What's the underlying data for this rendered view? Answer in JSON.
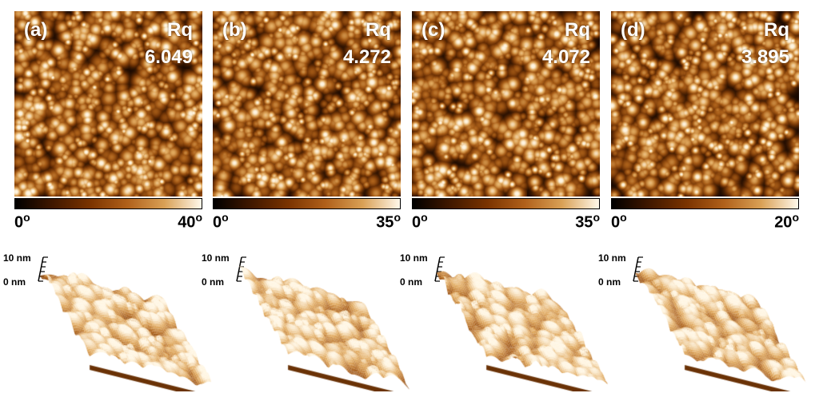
{
  "panels": [
    {
      "label": "(a)",
      "rq_title": "Rq",
      "rq_value": "6.049",
      "scale_min": "0",
      "scale_max": "40"
    },
    {
      "label": "(b)",
      "rq_title": "Rq",
      "rq_value": "4.272",
      "scale_min": "0",
      "scale_max": "35"
    },
    {
      "label": "(c)",
      "rq_title": "Rq",
      "rq_value": "4.072",
      "scale_min": "0",
      "scale_max": "35"
    },
    {
      "label": "(d)",
      "rq_title": "Rq",
      "rq_value": "3.895",
      "scale_min": "0",
      "scale_max": "20"
    }
  ],
  "degree_symbol": "o",
  "height_axis": {
    "top": "10 nm",
    "bottom": "0 nm"
  },
  "colors": {
    "dark": "#1a0800",
    "mid": "#9a5010",
    "light": "#fff3dc"
  }
}
